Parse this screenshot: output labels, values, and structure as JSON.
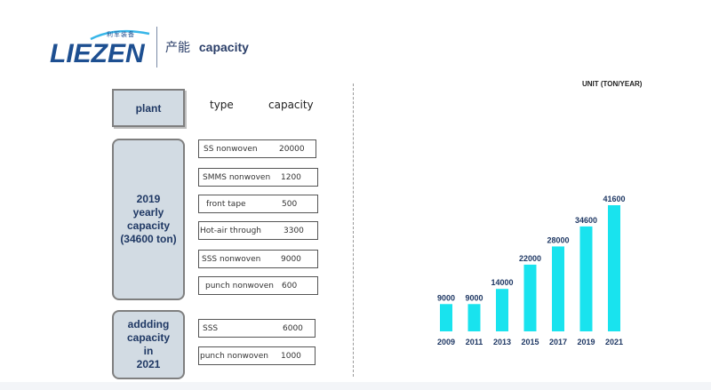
{
  "header": {
    "logo_text": "LIEZEN",
    "logo_cn": "利军装备",
    "title_cn": "产能",
    "title_en": "capacity"
  },
  "left": {
    "plant_label": "plant",
    "type_header": "type",
    "capacity_header": "capacity",
    "yearly_lines": [
      "2019",
      "yearly",
      "capacity",
      "(34600 ton)"
    ],
    "adding_lines": [
      "addding",
      "capacity",
      "in",
      "2021"
    ],
    "items_2019": [
      {
        "type": "SS nonwoven",
        "capacity": "20000"
      },
      {
        "type": "SMMS nonwoven",
        "capacity": "1200"
      },
      {
        "type": "front tape",
        "capacity": "500"
      },
      {
        "type": "Hot-air through",
        "capacity": "3300"
      },
      {
        "type": "SSS nonwoven",
        "capacity": "9000"
      },
      {
        "type": "punch nonwoven",
        "capacity": "600"
      }
    ],
    "items_2021": [
      {
        "type": "SSS",
        "capacity": "6000"
      },
      {
        "type": "punch nonwoven",
        "capacity": "1000"
      }
    ]
  },
  "chart_data": {
    "type": "bar",
    "unit_label": "UNIT (TON/YEAR)",
    "categories": [
      "2009",
      "2011",
      "2013",
      "2015",
      "2017",
      "2019",
      "2021"
    ],
    "values": [
      9000,
      9000,
      14000,
      22000,
      28000,
      34600,
      41600
    ],
    "data_labels": [
      "9000",
      "9000",
      "14000",
      "22000",
      "28000",
      "34600",
      "41600"
    ],
    "ylim": [
      0,
      41600
    ],
    "grid": false,
    "bar_color": "#19e3ee",
    "label_color": "#1f3864"
  }
}
